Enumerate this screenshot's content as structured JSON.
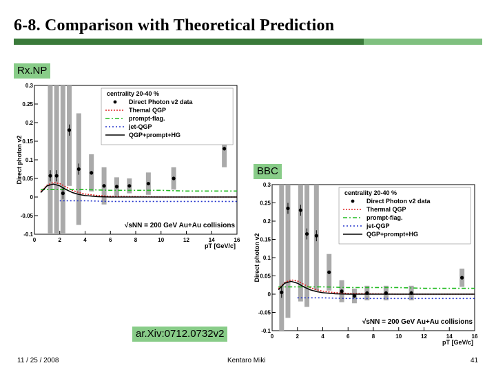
{
  "slide": {
    "title": "6-8. Comparison with Theoretical Prediction",
    "rxnp_label": "Rx.NP",
    "bbc_label": "BBC",
    "arxiv_label": "ar.Xiv:0712.0732v2",
    "footer_date": "11 / 25 / 2008",
    "footer_author": "Kentaro Miki",
    "footer_page": "41",
    "accent_dark": "#3a7a3a",
    "accent_light": "#88cc88"
  },
  "chart_data": [
    {
      "type": "scatter",
      "panel": "Rx.NP",
      "ylabel": "Direct photon v2",
      "xlabel": "pT [GeV/c]",
      "xlim": [
        0,
        16
      ],
      "ylim": [
        -0.1,
        0.3
      ],
      "xticks": [
        "0",
        "2",
        "4",
        "6",
        "8",
        "10",
        "12",
        "14",
        "16"
      ],
      "yticks": [
        "-0.1",
        "-0.05",
        "0",
        "0.05",
        "0.1",
        "0.15",
        "0.2",
        "0.25",
        "0.3"
      ],
      "legend_title": "centrality 20-40 %",
      "annotation": "√sNN = 200 GeV Au+Au collisions",
      "legend_position": "top-right",
      "data_label": "Direct Photon v2 data",
      "data": [
        {
          "x": 1.25,
          "y": 0.057,
          "sys": 0.3
        },
        {
          "x": 1.75,
          "y": 0.057,
          "sys": 0.3
        },
        {
          "x": 2.25,
          "y": 0.01,
          "sys": 0.3
        },
        {
          "x": 2.75,
          "y": 0.18,
          "sys": 0.15
        },
        {
          "x": 3.5,
          "y": 0.075,
          "sys": 0.15
        },
        {
          "x": 4.5,
          "y": 0.065,
          "sys": 0.05
        },
        {
          "x": 5.5,
          "y": 0.03,
          "sys": 0.05
        },
        {
          "x": 6.5,
          "y": 0.028,
          "sys": 0.025
        },
        {
          "x": 7.5,
          "y": 0.03,
          "sys": 0.02
        },
        {
          "x": 9,
          "y": 0.036,
          "sys": 0.03
        },
        {
          "x": 11,
          "y": 0.05,
          "sys": 0.03
        },
        {
          "x": 15,
          "y": 0.13,
          "sys": 0.05
        }
      ],
      "series": [
        {
          "name": "Themal QGP",
          "color": "#dd2222",
          "dash": "2,2",
          "x": [
            0.5,
            1,
            1.5,
            2,
            2.5,
            3,
            3.5,
            4,
            5,
            6,
            8,
            10,
            12,
            16
          ],
          "y": [
            0.015,
            0.032,
            0.039,
            0.036,
            0.027,
            0.018,
            0.012,
            0.008,
            0.004,
            0.002,
            0.001,
            0.0,
            0.0,
            0.0
          ]
        },
        {
          "name": "prompt-flag.",
          "color": "#22bb22",
          "dash": "6,3,2,3",
          "x": [
            0.5,
            1,
            2,
            3,
            4,
            6,
            8,
            10,
            12,
            16
          ],
          "y": [
            0.02,
            0.02,
            0.02,
            0.02,
            0.02,
            0.018,
            0.018,
            0.018,
            0.016,
            0.016
          ]
        },
        {
          "name": "jet-QGP",
          "color": "#2233cc",
          "dash": "2,3",
          "x": [
            2,
            4,
            6,
            8,
            10,
            12,
            16
          ],
          "y": [
            -0.01,
            -0.01,
            -0.012,
            -0.012,
            -0.012,
            -0.012,
            -0.012
          ]
        },
        {
          "name": "QGP+prompt+HG",
          "color": "#000000",
          "dash": "",
          "x": [
            0.5,
            1,
            1.5,
            2,
            2.5,
            3,
            3.5,
            4,
            5,
            6,
            8,
            10,
            12,
            16
          ],
          "y": [
            0.012,
            0.03,
            0.035,
            0.03,
            0.02,
            0.012,
            0.007,
            0.004,
            0.001,
            0.0,
            0.0,
            0.0,
            0.0,
            0.0
          ]
        }
      ]
    },
    {
      "type": "scatter",
      "panel": "BBC",
      "ylabel": "Direct photon v2",
      "xlabel": "pT [GeV/c]",
      "xlim": [
        0,
        16
      ],
      "ylim": [
        -0.1,
        0.3
      ],
      "xticks": [
        "0",
        "2",
        "4",
        "6",
        "8",
        "10",
        "12",
        "14",
        "16"
      ],
      "yticks": [
        "-0.1",
        "-0.05",
        "0",
        "0.05",
        "0.1",
        "0.15",
        "0.2",
        "0.25",
        "0.3"
      ],
      "legend_title": "centrality 20-40 %",
      "annotation": "√sNN = 200 GeV Au+Au collisions",
      "legend_position": "top-right",
      "data_label": "Direct Photon v2 data",
      "data": [
        {
          "x": 0.75,
          "y": 0.005,
          "sys": 0.3
        },
        {
          "x": 1.25,
          "y": 0.235,
          "sys": 0.3
        },
        {
          "x": 2.25,
          "y": 0.23,
          "sys": 0.25
        },
        {
          "x": 2.75,
          "y": 0.165,
          "sys": 0.2
        },
        {
          "x": 3.5,
          "y": 0.16,
          "sys": 0.15
        },
        {
          "x": 4.5,
          "y": 0.06,
          "sys": 0.05
        },
        {
          "x": 5.5,
          "y": 0.008,
          "sys": 0.03
        },
        {
          "x": 6.5,
          "y": -0.005,
          "sys": 0.02
        },
        {
          "x": 7.5,
          "y": 0.003,
          "sys": 0.02
        },
        {
          "x": 9,
          "y": 0.003,
          "sys": 0.02
        },
        {
          "x": 11,
          "y": 0.003,
          "sys": 0.02
        },
        {
          "x": 15,
          "y": 0.045,
          "sys": 0.025
        }
      ],
      "series": [
        {
          "name": "Thermal QGP",
          "color": "#dd2222",
          "dash": "2,2",
          "x": [
            0.5,
            1,
            1.5,
            2,
            2.5,
            3,
            3.5,
            4,
            5,
            6,
            8,
            10,
            12,
            16
          ],
          "y": [
            0.015,
            0.032,
            0.039,
            0.036,
            0.027,
            0.018,
            0.012,
            0.008,
            0.004,
            0.002,
            0.001,
            0.0,
            0.0,
            0.0
          ]
        },
        {
          "name": "prompt-flag.",
          "color": "#22bb22",
          "dash": "6,3,2,3",
          "x": [
            0.5,
            1,
            2,
            3,
            4,
            6,
            8,
            10,
            12,
            16
          ],
          "y": [
            0.02,
            0.02,
            0.02,
            0.02,
            0.02,
            0.018,
            0.018,
            0.018,
            0.016,
            0.016
          ]
        },
        {
          "name": "jet-QGP",
          "color": "#2233cc",
          "dash": "2,3",
          "x": [
            2,
            4,
            6,
            8,
            10,
            12,
            16
          ],
          "y": [
            -0.01,
            -0.01,
            -0.012,
            -0.012,
            -0.012,
            -0.012,
            -0.012
          ]
        },
        {
          "name": "QGP+prompt+HG",
          "color": "#000000",
          "dash": "",
          "x": [
            0.5,
            1,
            1.5,
            2,
            2.5,
            3,
            3.5,
            4,
            5,
            6,
            8,
            10,
            12,
            16
          ],
          "y": [
            0.012,
            0.03,
            0.035,
            0.03,
            0.02,
            0.012,
            0.007,
            0.004,
            0.001,
            0.0,
            0.0,
            0.0,
            0.0,
            0.0
          ]
        }
      ]
    }
  ]
}
